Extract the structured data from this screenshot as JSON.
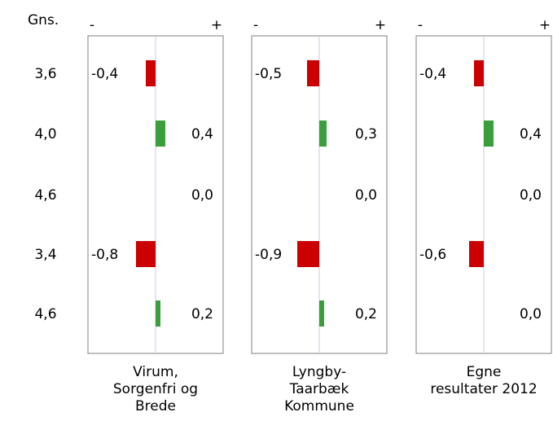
{
  "chart_data": {
    "type": "bar",
    "header_label": "Gns.",
    "sign_negative": "-",
    "sign_positive": "+",
    "averages": [
      "3,6",
      "4,0",
      "4,6",
      "3,4",
      "4,6"
    ],
    "xlim": [
      -1.0,
      1.0
    ],
    "panels": [
      {
        "name": "Virum, Sorgenfri og Brede",
        "name_lines": [
          "Virum,",
          "Sorgenfri og",
          "Brede"
        ],
        "values": [
          -0.4,
          0.4,
          0.0,
          -0.8,
          0.2
        ],
        "labels": [
          "-0,4",
          "0,4",
          "0,0",
          "-0,8",
          "0,2"
        ]
      },
      {
        "name": "Lyngby-Taarbæk Kommune",
        "name_lines": [
          "Lyngby-",
          "Taarbæk",
          "Kommune"
        ],
        "values": [
          -0.5,
          0.3,
          0.0,
          -0.9,
          0.2
        ],
        "labels": [
          "-0,5",
          "0,3",
          "0,0",
          "-0,9",
          "0,2"
        ]
      },
      {
        "name": "Egne resultater 2012",
        "name_lines": [
          "Egne",
          "resultater 2012"
        ],
        "values": [
          -0.4,
          0.4,
          0.0,
          -0.6,
          0.0
        ],
        "labels": [
          "-0,4",
          "0,4",
          "0,0",
          "-0,6",
          "0,0"
        ]
      }
    ],
    "colors": {
      "negative": "#cc0000",
      "positive": "#3a9e3a",
      "center_line": "#c8c8e6",
      "frame": "#7f7f7f"
    }
  }
}
